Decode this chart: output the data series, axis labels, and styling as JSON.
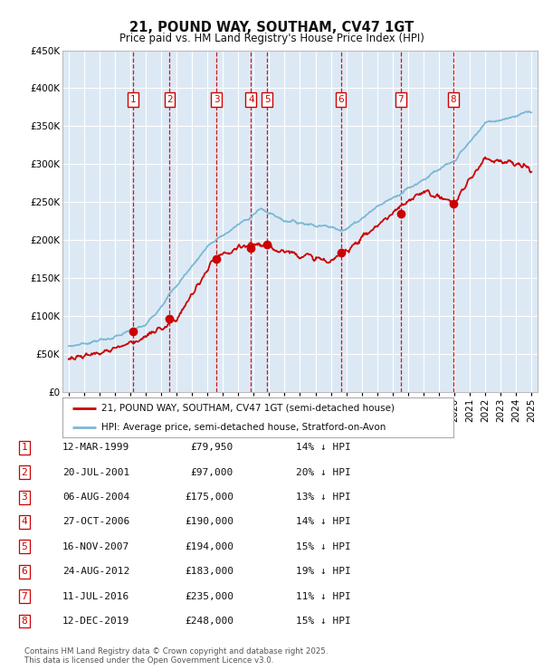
{
  "title": "21, POUND WAY, SOUTHAM, CV47 1GT",
  "subtitle": "Price paid vs. HM Land Registry's House Price Index (HPI)",
  "background_color": "#ffffff",
  "plot_bg_color": "#dce9f5",
  "grid_color": "#ffffff",
  "hpi_color": "#7bb8d4",
  "price_color": "#cc0000",
  "vline_color": "#cc0000",
  "ylim": [
    0,
    450000
  ],
  "yticks": [
    0,
    50000,
    100000,
    150000,
    200000,
    250000,
    300000,
    350000,
    400000,
    450000
  ],
  "ytick_labels": [
    "£0",
    "£50K",
    "£100K",
    "£150K",
    "£200K",
    "£250K",
    "£300K",
    "£350K",
    "£400K",
    "£450K"
  ],
  "xlim_start": 1994.6,
  "xlim_end": 2025.4,
  "xticks": [
    1995,
    1996,
    1997,
    1998,
    1999,
    2000,
    2001,
    2002,
    2003,
    2004,
    2005,
    2006,
    2007,
    2008,
    2009,
    2010,
    2011,
    2012,
    2013,
    2014,
    2015,
    2016,
    2017,
    2018,
    2019,
    2020,
    2021,
    2022,
    2023,
    2024,
    2025
  ],
  "sales": [
    {
      "label": "1",
      "year": 1999.19,
      "price": 79950
    },
    {
      "label": "2",
      "year": 2001.55,
      "price": 97000
    },
    {
      "label": "3",
      "year": 2004.59,
      "price": 175000
    },
    {
      "label": "4",
      "year": 2006.82,
      "price": 190000
    },
    {
      "label": "5",
      "year": 2007.87,
      "price": 194000
    },
    {
      "label": "6",
      "year": 2012.64,
      "price": 183000
    },
    {
      "label": "7",
      "year": 2016.52,
      "price": 235000
    },
    {
      "label": "8",
      "year": 2019.94,
      "price": 248000
    }
  ],
  "legend_line1": "21, POUND WAY, SOUTHAM, CV47 1GT (semi-detached house)",
  "legend_line2": "HPI: Average price, semi-detached house, Stratford-on-Avon",
  "footer": "Contains HM Land Registry data © Crown copyright and database right 2025.\nThis data is licensed under the Open Government Licence v3.0.",
  "table_data": [
    {
      "num": "1",
      "date": "12-MAR-1999",
      "price": "£79,950",
      "pct": "14% ↓ HPI"
    },
    {
      "num": "2",
      "date": "20-JUL-2001",
      "price": "£97,000",
      "pct": "20% ↓ HPI"
    },
    {
      "num": "3",
      "date": "06-AUG-2004",
      "price": "£175,000",
      "pct": "13% ↓ HPI"
    },
    {
      "num": "4",
      "date": "27-OCT-2006",
      "price": "£190,000",
      "pct": "14% ↓ HPI"
    },
    {
      "num": "5",
      "date": "16-NOV-2007",
      "price": "£194,000",
      "pct": "15% ↓ HPI"
    },
    {
      "num": "6",
      "date": "24-AUG-2012",
      "price": "£183,000",
      "pct": "19% ↓ HPI"
    },
    {
      "num": "7",
      "date": "11-JUL-2016",
      "price": "£235,000",
      "pct": "11% ↓ HPI"
    },
    {
      "num": "8",
      "date": "12-DEC-2019",
      "price": "£248,000",
      "pct": "15% ↓ HPI"
    }
  ]
}
